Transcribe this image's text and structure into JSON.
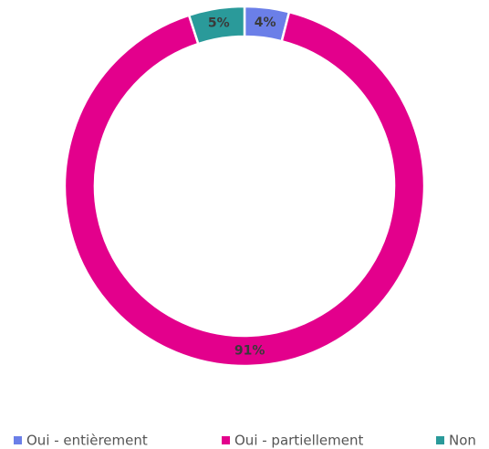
{
  "chart_data": {
    "type": "donut",
    "categories": [
      "Oui - entièrement",
      "Oui - partiellement",
      "Non"
    ],
    "values": [
      4,
      91,
      5
    ],
    "value_labels": [
      "4%",
      "91%",
      "5%"
    ],
    "colors": [
      "#6b7fe8",
      "#e3008c",
      "#2a9a9a"
    ]
  }
}
